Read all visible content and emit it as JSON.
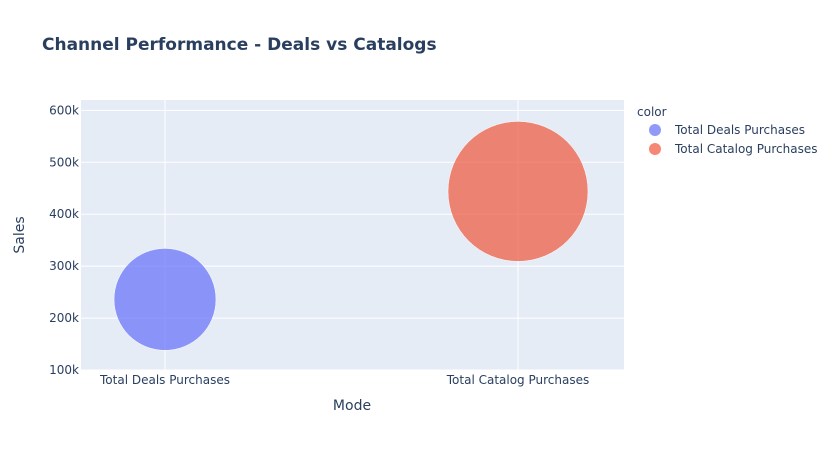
{
  "chart_data": {
    "type": "scatter",
    "title": "Channel Performance - Deals vs Catalogs",
    "xlabel": "Mode",
    "ylabel": "Sales",
    "categories": [
      "Total Deals Purchases",
      "Total Catalog Purchases"
    ],
    "ylim": [
      100000,
      620000
    ],
    "yticks": [
      100000,
      200000,
      300000,
      400000,
      500000,
      600000
    ],
    "ytick_labels": [
      "100k",
      "200k",
      "300k",
      "400k",
      "500k",
      "600k"
    ],
    "grid": true,
    "legend": {
      "title": "color",
      "placement": "right"
    },
    "series": [
      {
        "name": "Total Deals Purchases",
        "x": "Total Deals Purchases",
        "y": 236000,
        "size": 0.53,
        "color": "#636efa"
      },
      {
        "name": "Total Catalog Purchases",
        "x": "Total Catalog Purchases",
        "y": 444000,
        "size": 1.0,
        "color": "#ef553b"
      }
    ]
  },
  "colors": {
    "plot_bg": "#e5ecf6",
    "grid": "#ffffff",
    "text": "#2a3f5f"
  }
}
